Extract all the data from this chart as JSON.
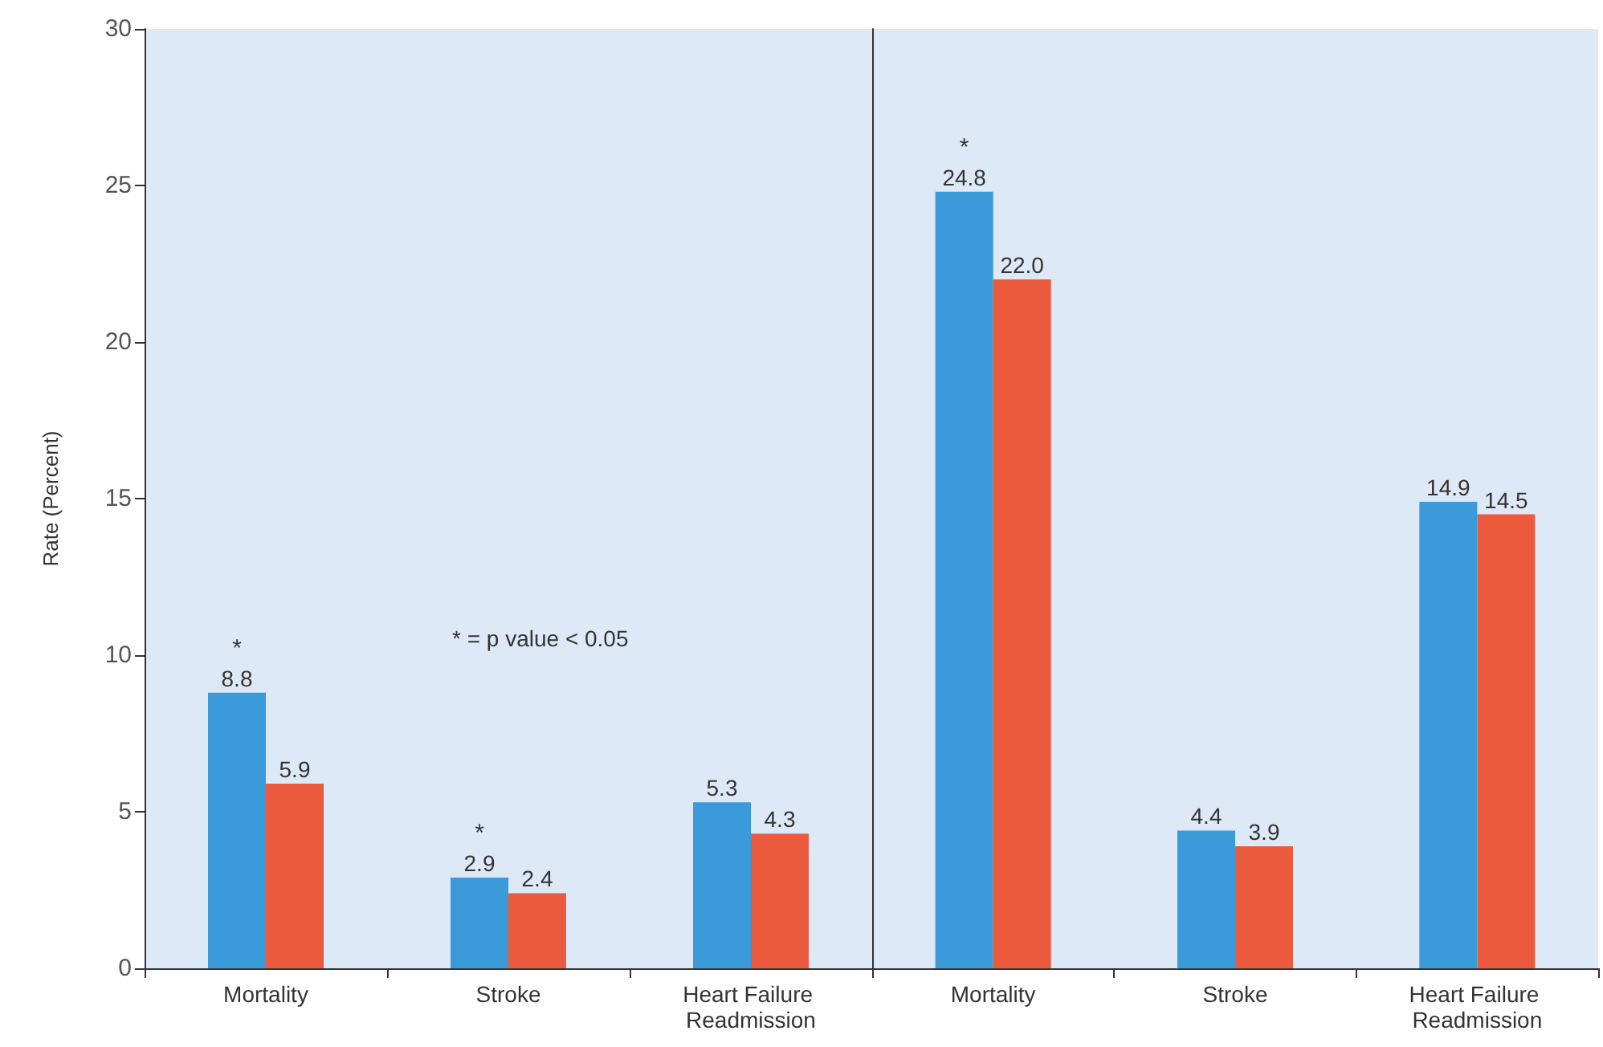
{
  "chart_data": [
    {
      "type": "bar",
      "ylabel": "Rate (Percent)",
      "categories": [
        "Mortality",
        "Stroke",
        "Heart Failure Readmission"
      ],
      "ylim": [
        0,
        30
      ],
      "yticks": [
        0,
        5,
        10,
        15,
        20,
        25,
        30
      ],
      "grid": false,
      "series": [
        {
          "color": "#3b9ad9",
          "values": [
            8.8,
            2.9,
            5.3
          ],
          "value_labels": [
            "8.8",
            "2.9",
            "5.3"
          ]
        },
        {
          "color": "#ec5a3e",
          "values": [
            5.9,
            2.4,
            4.3
          ],
          "value_labels": [
            "5.9",
            "2.4",
            "4.3"
          ]
        }
      ],
      "annotations": [
        {
          "text": "*",
          "x": "Mortality",
          "y": 8.8
        },
        {
          "text": "*",
          "x": "Stroke",
          "y": 2.9
        },
        "* = p value < 0.05"
      ]
    },
    {
      "type": "bar",
      "categories": [
        "Mortality",
        "Stroke",
        "Heart Failure Readmission"
      ],
      "ylim": [
        0,
        30
      ],
      "yticks": [
        0,
        5,
        10,
        15,
        20,
        25,
        30
      ],
      "grid": false,
      "tick_labels": "x",
      "series": [
        {
          "color": "#3b9ad9",
          "values": [
            24.8,
            4.4,
            14.9
          ],
          "value_labels": [
            "24.8",
            "4.4",
            "14.9"
          ]
        },
        {
          "color": "#ec5a3e",
          "values": [
            22.0,
            3.9,
            14.5
          ],
          "value_labels": [
            "22.0",
            "3.9",
            "14.5"
          ]
        }
      ],
      "annotations": [
        {
          "text": "*",
          "x": "Mortality",
          "y": 24.8
        }
      ]
    }
  ]
}
